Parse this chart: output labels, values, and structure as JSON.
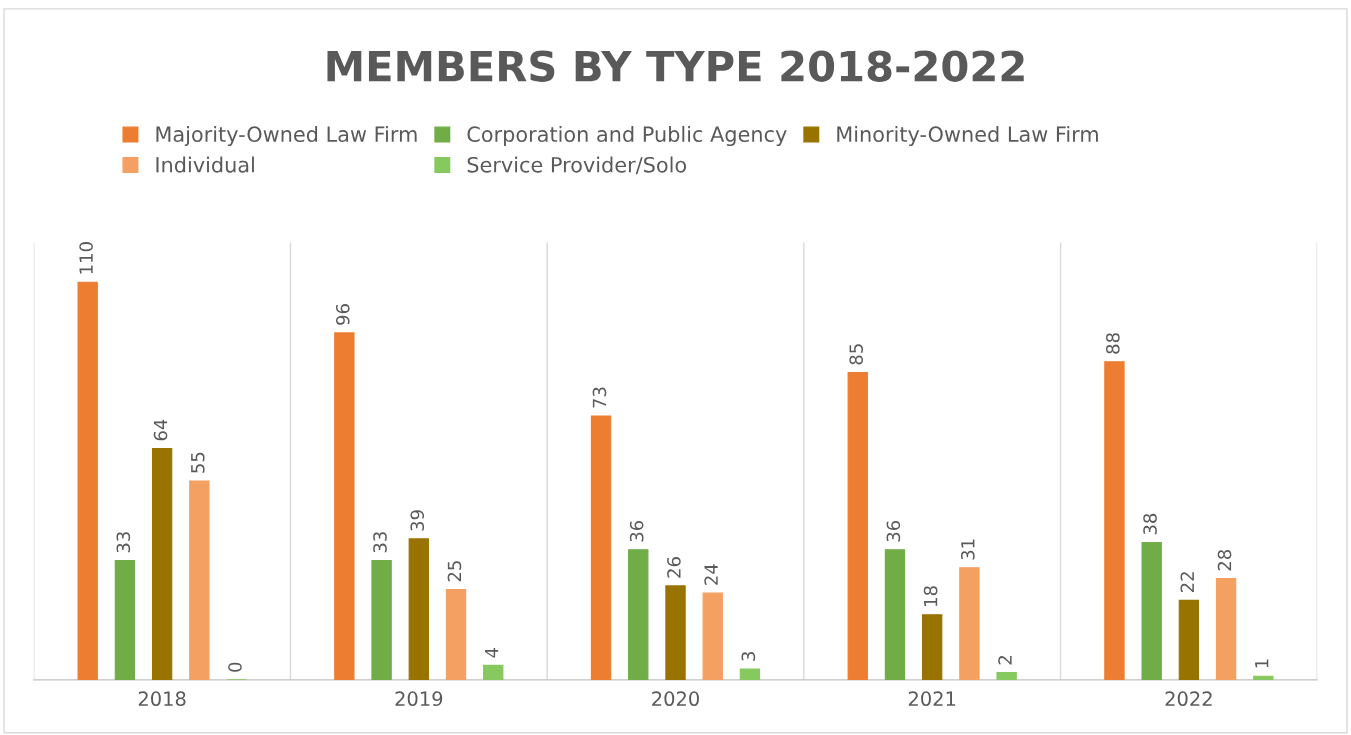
{
  "chart_data": {
    "type": "bar",
    "title": "MEMBERS BY TYPE 2018-2022",
    "categories": [
      "2018",
      "2019",
      "2020",
      "2021",
      "2022"
    ],
    "series": [
      {
        "name": "Majority-Owned Law Firm",
        "color": "#ed7d31",
        "values": [
          110,
          96,
          73,
          85,
          88
        ]
      },
      {
        "name": "Corporation and Public Agency",
        "color": "#70ad47",
        "values": [
          33,
          33,
          36,
          36,
          38
        ]
      },
      {
        "name": "Minority-Owned Law Firm",
        "color": "#997300",
        "values": [
          64,
          39,
          26,
          18,
          22
        ]
      },
      {
        "name": "Individual",
        "color": "#f4a062",
        "values": [
          55,
          25,
          24,
          31,
          28
        ]
      },
      {
        "name": "Service Provider/Solo",
        "color": "#86c95e",
        "values": [
          0,
          4,
          3,
          2,
          1
        ]
      }
    ],
    "data_labels": true,
    "legend": "top",
    "grid": "x",
    "tick_labels": "x"
  }
}
